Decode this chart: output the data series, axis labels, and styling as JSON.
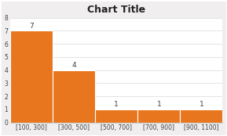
{
  "title": "Chart Title",
  "categories": [
    "[100, 300]",
    "[300, 500]",
    "[500, 700]",
    "[700, 900]",
    "[900, 1100]"
  ],
  "values": [
    7,
    4,
    1,
    1,
    1
  ],
  "bar_color": "#E8761E",
  "bar_edge_color": "#ffffff",
  "label_color": "#404040",
  "ylim": [
    0,
    8
  ],
  "yticks": [
    0,
    1,
    2,
    3,
    4,
    5,
    6,
    7,
    8
  ],
  "title_fontsize": 9,
  "label_fontsize": 6.5,
  "tick_fontsize": 5.5,
  "background_color": "#f0eeee",
  "plot_background": "#ffffff",
  "grid_color": "#d8d8d8",
  "border_color": "#c0c0c0"
}
